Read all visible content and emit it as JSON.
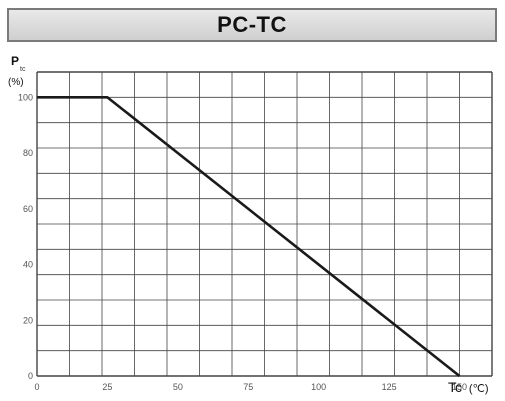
{
  "header": {
    "title": "PC-TC"
  },
  "chart_data": {
    "type": "line",
    "title": "PC-TC",
    "xlabel": "Tc (℃)",
    "xlabel_main": "Tc",
    "xlabel_unit": "(℃)",
    "ylabel_main": "P",
    "ylabel_sub": "tc",
    "ylabel_unit": "(%)",
    "xlim": [
      0,
      160
    ],
    "ylim": [
      0,
      100
    ],
    "x_ticks": [
      "0",
      "25",
      "50",
      "75",
      "100",
      "125",
      "150"
    ],
    "y_ticks": [
      "0",
      "20",
      "40",
      "60",
      "80",
      "100"
    ],
    "grid": true,
    "series": [
      {
        "x": [
          0,
          25,
          150
        ],
        "y": [
          100,
          100,
          0
        ]
      }
    ],
    "colors": {
      "line": "#1a1a1a",
      "grid": "#444444",
      "title_bg": "#d9d9d9"
    }
  }
}
